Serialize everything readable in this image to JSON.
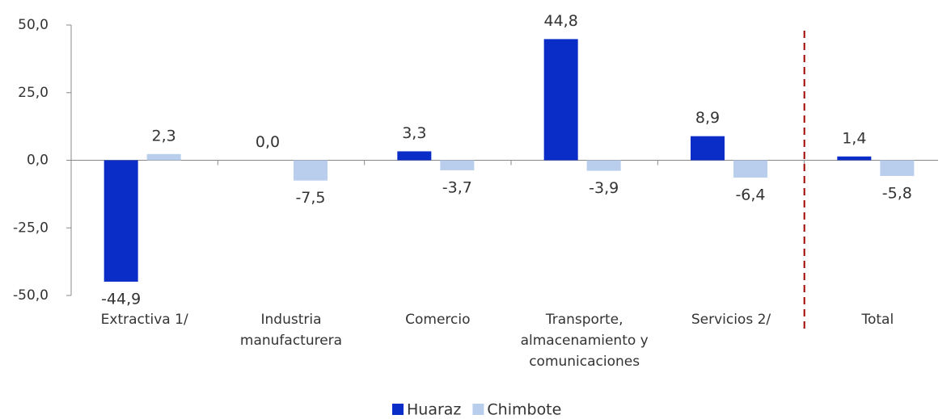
{
  "chart_data": {
    "type": "bar",
    "categories": [
      "Extractiva 1/",
      "Industria\nmanufacturera",
      "Comercio",
      "Transporte,\nalmacenamiento y\ncomunicaciones",
      "Servicios 2/",
      "Total"
    ],
    "series": [
      {
        "name": "Huaraz",
        "color": "#0a2dc7",
        "values": [
          -44.9,
          0.0,
          3.3,
          44.8,
          8.9,
          1.4
        ],
        "value_labels": [
          "-44,9",
          "0,0",
          "3,3",
          "44,8",
          "8,9",
          "1,4"
        ]
      },
      {
        "name": "Chimbote",
        "color": "#b9cdec",
        "values": [
          2.3,
          -7.5,
          -3.7,
          -3.9,
          -6.4,
          -5.8
        ],
        "value_labels": [
          "2,3",
          "-7,5",
          "-3,7",
          "-3,9",
          "-6,4",
          "-5,8"
        ]
      }
    ],
    "ylim": [
      -50,
      50
    ],
    "yticks": [
      {
        "value": -50,
        "label": "-50,0"
      },
      {
        "value": -25,
        "label": "-25,0"
      },
      {
        "value": 0,
        "label": "0,0"
      },
      {
        "value": 25,
        "label": "25,0"
      },
      {
        "value": 50,
        "label": "50,0"
      }
    ],
    "legend": "bottom"
  }
}
